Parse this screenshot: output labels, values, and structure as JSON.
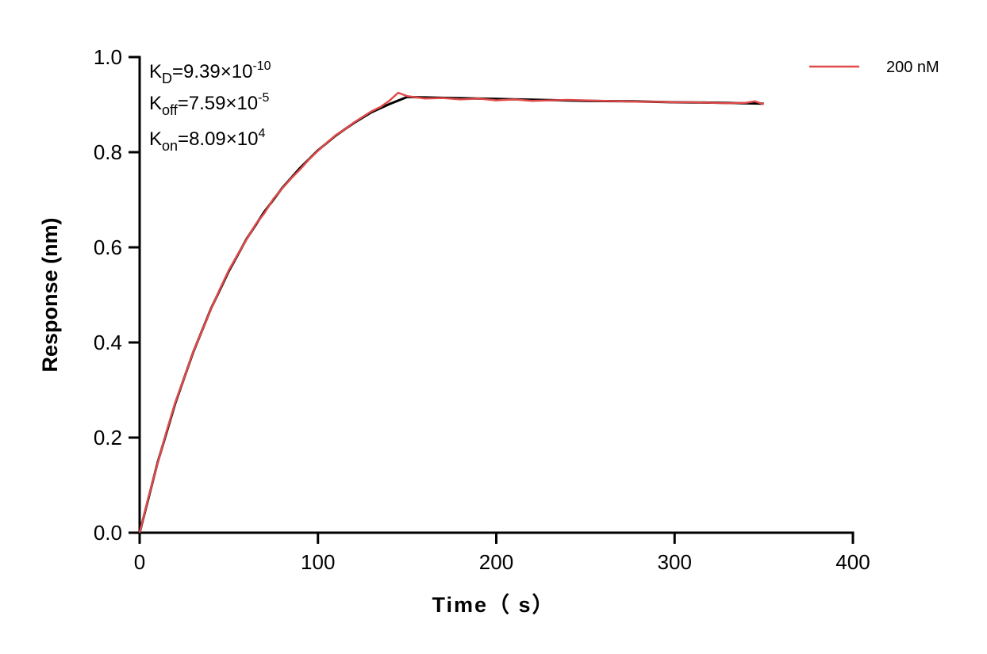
{
  "chart_data": {
    "type": "line",
    "title": "",
    "xlabel": "Time（ s）",
    "ylabel": "Response (nm)",
    "xlim": [
      0,
      400
    ],
    "ylim": [
      0,
      1.0
    ],
    "xticks": [
      "0",
      "100",
      "200",
      "300",
      "400"
    ],
    "yticks": [
      "0.0",
      "0.2",
      "0.4",
      "0.6",
      "0.8",
      "1.0"
    ],
    "grid": false,
    "legend_position": "top-right",
    "annotations": {
      "kd": {
        "base": "K",
        "sub": "D",
        "value": "=9.39×10",
        "exp": "-10"
      },
      "koff": {
        "base": "K",
        "sub": "off",
        "value": "=7.59×10",
        "exp": "-5"
      },
      "kon": {
        "base": "K",
        "sub": "on",
        "value": "=8.09×10",
        "exp": "4"
      }
    },
    "series": [
      {
        "name": "200 nM",
        "color": "#e04a4a",
        "x": [
          0,
          5,
          10,
          15,
          20,
          25,
          30,
          35,
          40,
          45,
          50,
          55,
          60,
          65,
          70,
          75,
          80,
          85,
          90,
          95,
          100,
          105,
          110,
          115,
          120,
          125,
          130,
          135,
          140,
          145,
          150,
          160,
          170,
          180,
          190,
          200,
          210,
          220,
          230,
          240,
          250,
          260,
          270,
          280,
          290,
          300,
          310,
          320,
          330,
          340,
          345,
          350
        ],
        "y": [
          0,
          0.075,
          0.145,
          0.212,
          0.274,
          0.326,
          0.38,
          0.425,
          0.47,
          0.512,
          0.552,
          0.585,
          0.617,
          0.648,
          0.672,
          0.702,
          0.724,
          0.745,
          0.764,
          0.785,
          0.803,
          0.82,
          0.836,
          0.848,
          0.862,
          0.874,
          0.886,
          0.895,
          0.908,
          0.925,
          0.918,
          0.913,
          0.914,
          0.911,
          0.913,
          0.909,
          0.911,
          0.908,
          0.909,
          0.91,
          0.909,
          0.908,
          0.907,
          0.906,
          0.906,
          0.905,
          0.905,
          0.904,
          0.903,
          0.904,
          0.907,
          0.901
        ]
      },
      {
        "name": "",
        "color": "#000000",
        "x": [
          0,
          10,
          20,
          30,
          40,
          50,
          60,
          70,
          80,
          90,
          100,
          110,
          120,
          130,
          140,
          150,
          175,
          200,
          225,
          250,
          275,
          300,
          325,
          350
        ],
        "y": [
          0,
          0.1465,
          0.272,
          0.379,
          0.471,
          0.55,
          0.618,
          0.675,
          0.725,
          0.767,
          0.804,
          0.835,
          0.861,
          0.884,
          0.901,
          0.916,
          0.914,
          0.912,
          0.91,
          0.908,
          0.907,
          0.905,
          0.904,
          0.902
        ]
      }
    ]
  }
}
